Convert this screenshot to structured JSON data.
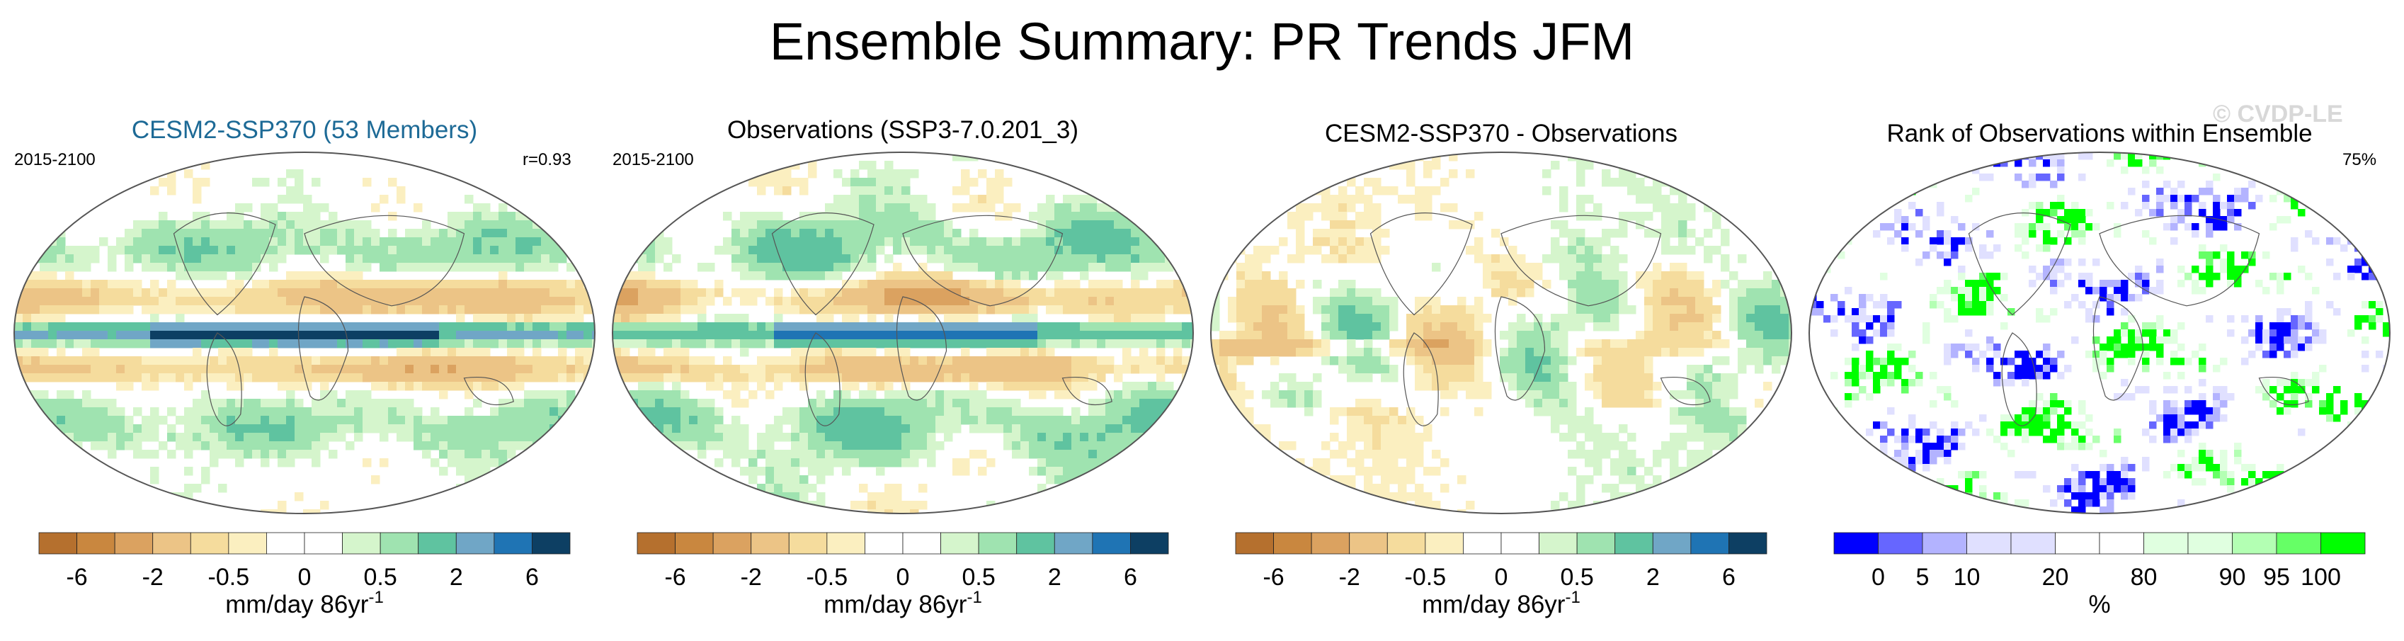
{
  "title": "Ensemble Summary: PR Trends JFM",
  "watermark": "© CVDP-LE",
  "panels": [
    {
      "title": "CESM2-SSP370 (53 Members)",
      "left_label": "2015-2100",
      "right_label": "r=0.93",
      "title_color": "#1d6a96"
    },
    {
      "title": "Observations (SSP3-7.0.201_3)",
      "left_label": "2015-2100",
      "right_label": "",
      "title_color": "#000000"
    },
    {
      "title": "CESM2-SSP370 - Observations",
      "left_label": "",
      "right_label": "",
      "title_color": "#000000"
    },
    {
      "title": "Rank of Observations within Ensemble",
      "left_label": "",
      "right_label": "75%",
      "title_color": "#000000"
    }
  ],
  "colorbar_trend": {
    "colors": [
      "#b5702e",
      "#c9873f",
      "#dba260",
      "#ecc486",
      "#f5dc9d",
      "#fbefc0",
      "#ffffff",
      "#ffffff",
      "#d5f5cc",
      "#9fe3b0",
      "#5fc3a0",
      "#70a6c6",
      "#1f74b4",
      "#0d3f63"
    ],
    "ticks": [
      "-6",
      "-2",
      "-0.5",
      "0",
      "0.5",
      "2",
      "6"
    ],
    "tick_positions": [
      1,
      3,
      5,
      7,
      9,
      11,
      13
    ],
    "units_main": "mm/day 86yr",
    "units_sup": "-1"
  },
  "colorbar_rank": {
    "colors": [
      "#0000ff",
      "#6666ff",
      "#b3b3ff",
      "#e0e0ff",
      "#e0e0ff",
      "#ffffff",
      "#ffffff",
      "#e0ffe0",
      "#e0ffe0",
      "#b3ffb3",
      "#66ff66",
      "#00ff00"
    ],
    "ticks": [
      "0",
      "5",
      "10",
      "20",
      "80",
      "90",
      "95",
      "100"
    ],
    "tick_positions": [
      1,
      2,
      3,
      5,
      7,
      9,
      10,
      11
    ],
    "units": "%"
  },
  "chart_data": [
    {
      "type": "heatmap",
      "title": "CESM2-SSP370 (53 Members)",
      "period": "2015-2100",
      "pattern_correlation": 0.93,
      "variable": "PR trend JFM",
      "units": "mm/day 86yr-1",
      "levels": [
        -6,
        -4,
        -2,
        -1,
        -0.5,
        -0.25,
        0,
        0.25,
        0.5,
        1,
        2,
        4,
        6
      ]
    },
    {
      "type": "heatmap",
      "title": "Observations (SSP3-7.0.201_3)",
      "period": "2015-2100",
      "variable": "PR trend JFM",
      "units": "mm/day 86yr-1",
      "levels": [
        -6,
        -4,
        -2,
        -1,
        -0.5,
        -0.25,
        0,
        0.25,
        0.5,
        1,
        2,
        4,
        6
      ]
    },
    {
      "type": "heatmap",
      "title": "CESM2-SSP370 - Observations",
      "variable": "PR trend difference",
      "units": "mm/day 86yr-1",
      "levels": [
        -6,
        -4,
        -2,
        -1,
        -0.5,
        -0.25,
        0,
        0.25,
        0.5,
        1,
        2,
        4,
        6
      ]
    },
    {
      "type": "heatmap",
      "title": "Rank of Observations within Ensemble",
      "area_percent_label": "75%",
      "units": "%",
      "levels": [
        0,
        5,
        10,
        20,
        80,
        90,
        95,
        100
      ]
    }
  ]
}
